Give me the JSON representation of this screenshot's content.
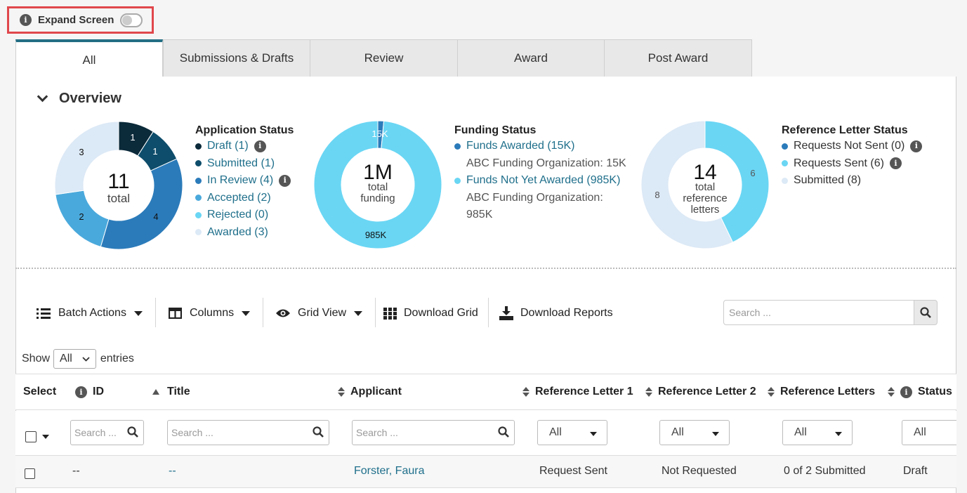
{
  "expand_screen": {
    "label": "Expand Screen",
    "enabled": false
  },
  "tabs": [
    {
      "label": "All",
      "active": true
    },
    {
      "label": "Submissions & Drafts",
      "active": false
    },
    {
      "label": "Review",
      "active": false
    },
    {
      "label": "Award",
      "active": false
    },
    {
      "label": "Post Award",
      "active": false
    }
  ],
  "overview": {
    "heading": "Overview",
    "application_status": {
      "title": "Application Status",
      "total": "11",
      "total_label": "total",
      "items": [
        {
          "label": "Draft (1)",
          "value": 1,
          "color": "#0b2a3a",
          "info": true
        },
        {
          "label": "Submitted (1)",
          "value": 1,
          "color": "#0e4d6b",
          "info": false
        },
        {
          "label": "In Review (4)",
          "value": 4,
          "color": "#2b7bba",
          "info": true
        },
        {
          "label": "Accepted (2)",
          "value": 2,
          "color": "#4aa9dc",
          "info": false
        },
        {
          "label": "Rejected (0)",
          "value": 0,
          "color": "#6ad6f4",
          "info": false
        },
        {
          "label": "Awarded (3)",
          "value": 3,
          "color": "#dce9f6",
          "info": false
        }
      ],
      "slice_labels": [
        "1",
        "1",
        "4",
        "2",
        "3"
      ]
    },
    "funding_status": {
      "title": "Funding Status",
      "total": "1M",
      "total_label_1": "total",
      "total_label_2": "funding",
      "awarded_label": "Funds Awarded (15K)",
      "awarded_sub": "ABC Funding Organization: 15K",
      "awarded_color": "#2b7bba",
      "not_awarded_label": "Funds Not Yet Awarded (985K)",
      "not_awarded_sub_1": "ABC Funding Organization:",
      "not_awarded_sub_2": "985K",
      "not_awarded_color": "#6ad6f4",
      "awarded_value": 15,
      "not_awarded_value": 985,
      "slice_label_awarded": "15K",
      "slice_label_not_awarded": "985K"
    },
    "reference_status": {
      "title": "Reference Letter Status",
      "total": "14",
      "total_label_1": "total",
      "total_label_2": "reference",
      "total_label_3": "letters",
      "items": [
        {
          "label": "Requests Not Sent (0)",
          "value": 0,
          "color": "#2b7bba",
          "info": true
        },
        {
          "label": "Requests Sent (6)",
          "value": 6,
          "color": "#6ad6f4",
          "info": true
        },
        {
          "label": "Submitted (8)",
          "value": 8,
          "color": "#dce9f6",
          "info": false
        }
      ],
      "slice_labels": [
        "6",
        "8"
      ]
    }
  },
  "toolbar": {
    "batch_actions": "Batch Actions",
    "columns": "Columns",
    "grid_view": "Grid View",
    "download_grid": "Download Grid",
    "download_reports": "Download Reports",
    "search_placeholder": "Search ..."
  },
  "entries": {
    "show": "Show",
    "value": "All",
    "suffix": "entries"
  },
  "table": {
    "headers": {
      "select": "Select",
      "id": "ID",
      "title": "Title",
      "applicant": "Applicant",
      "ref1": "Reference Letter 1",
      "ref2": "Reference Letter 2",
      "refs": "Reference Letters",
      "status": "Status"
    },
    "filters": {
      "search_short": "Search ...",
      "search": "Search ...",
      "all": "All"
    },
    "rows": [
      {
        "id": "--",
        "title": "--",
        "applicant": "Forster, Faura",
        "ref1": "Request Sent",
        "ref2": "Not Requested",
        "refs": "0 of 2 Submitted",
        "status": "Draft"
      }
    ]
  }
}
